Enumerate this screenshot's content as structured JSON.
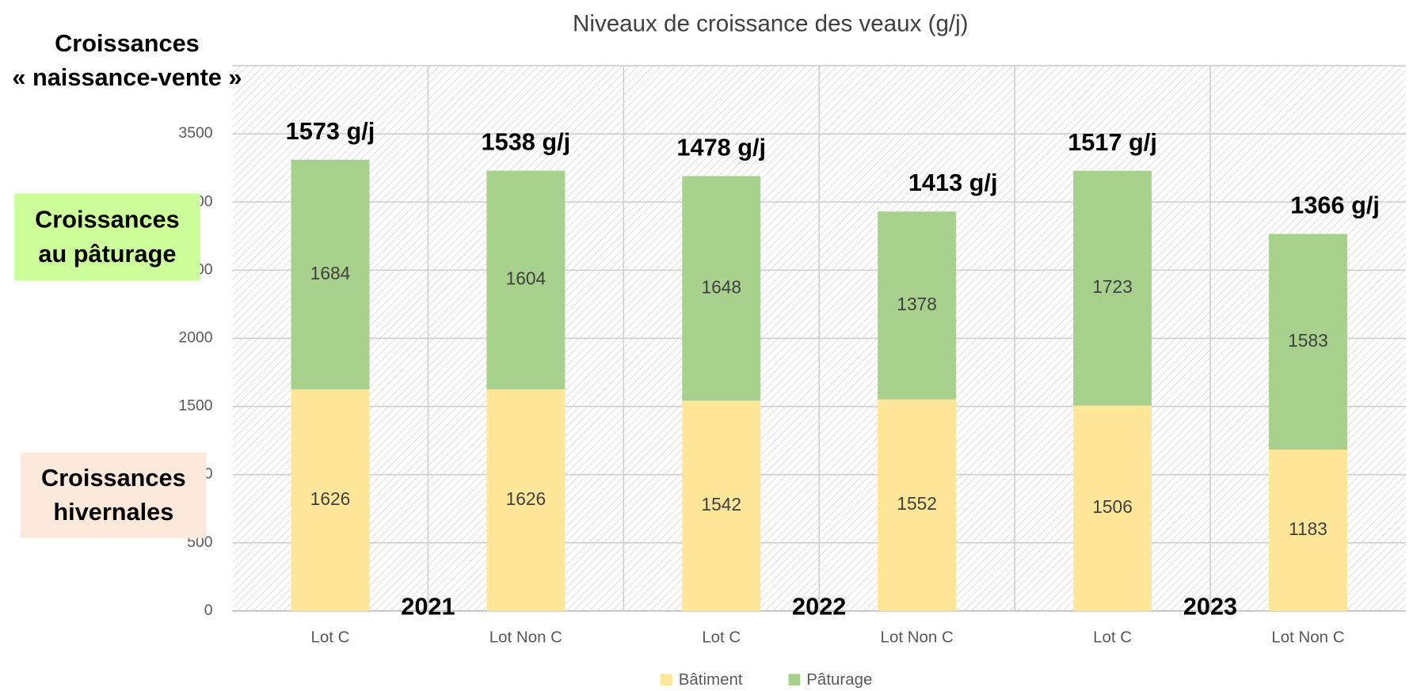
{
  "chart_data": {
    "type": "stacked_bar",
    "title": "Niveaux de croissance des veaux (g/j)",
    "categories": [
      "Lot C",
      "Lot Non C",
      "Lot C",
      "Lot Non C",
      "Lot C",
      "Lot Non C"
    ],
    "series": [
      {
        "name": "Bâtiment",
        "color": "#ffe699",
        "values": [
          1626,
          1626,
          1542,
          1552,
          1506,
          1183
        ]
      },
      {
        "name": "Pâturage",
        "color": "#a9d18e",
        "values": [
          1684,
          1604,
          1648,
          1378,
          1723,
          1583
        ]
      }
    ],
    "ylim": [
      0,
      4000
    ],
    "yticks": [
      0,
      500,
      1000,
      1500,
      2000,
      2500,
      3000,
      3500,
      4000
    ],
    "grid": true,
    "legend": "bottom",
    "total_labels": [
      "1573 g/j",
      "1538 g/j",
      "1478 g/j",
      "1413 g/j",
      "1517 g/j",
      "1366 g/j"
    ],
    "years": [
      "2021",
      "2022",
      "2023"
    ],
    "annotations": [
      {
        "lines": [
          "Croissances",
          "« naissance-vente »"
        ]
      },
      {
        "lines": [
          "Croissances",
          "au pâturage"
        ],
        "color": "#ccff99"
      },
      {
        "lines": [
          "Croissances",
          "hivernales"
        ],
        "color": "#fde9d9"
      }
    ]
  }
}
